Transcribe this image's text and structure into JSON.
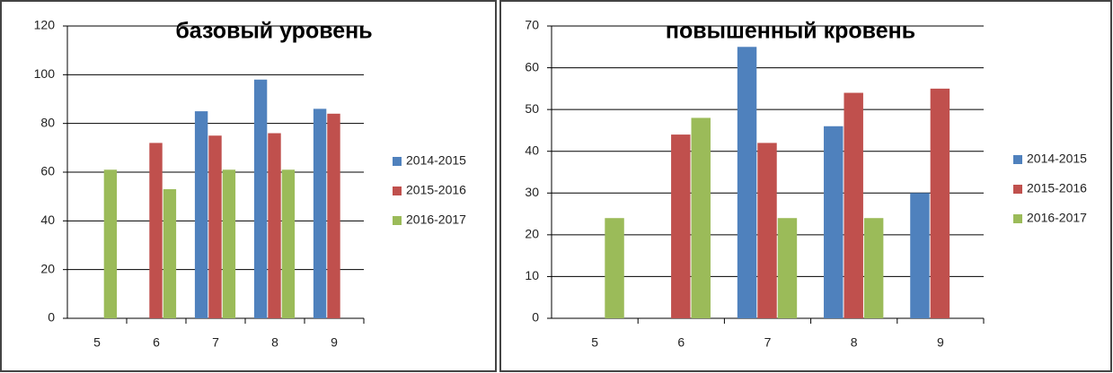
{
  "chart_data": [
    {
      "type": "bar",
      "title": "базовый уровень",
      "categories": [
        "5",
        "6",
        "7",
        "8",
        "9"
      ],
      "series": [
        {
          "name": "2014-2015",
          "color": "#4f81bd",
          "values": [
            null,
            null,
            85,
            98,
            86
          ]
        },
        {
          "name": "2015-2016",
          "color": "#c0504d",
          "values": [
            null,
            72,
            75,
            76,
            84
          ]
        },
        {
          "name": "2016-2017",
          "color": "#9bbb59",
          "values": [
            61,
            53,
            61,
            61,
            null
          ]
        }
      ],
      "ylim": [
        0,
        120
      ],
      "yticks": [
        0,
        20,
        40,
        60,
        80,
        100,
        120
      ],
      "grid": true,
      "legend": "right"
    },
    {
      "type": "bar",
      "title": "повышенный кровень",
      "categories": [
        "5",
        "6",
        "7",
        "8",
        "9"
      ],
      "series": [
        {
          "name": "2014-2015",
          "color": "#4f81bd",
          "values": [
            null,
            null,
            65,
            46,
            30
          ]
        },
        {
          "name": "2015-2016",
          "color": "#c0504d",
          "values": [
            null,
            44,
            42,
            54,
            55
          ]
        },
        {
          "name": "2016-2017",
          "color": "#9bbb59",
          "values": [
            24,
            48,
            24,
            24,
            null
          ]
        }
      ],
      "ylim": [
        0,
        70
      ],
      "yticks": [
        0,
        10,
        20,
        30,
        40,
        50,
        60,
        70
      ],
      "grid": true,
      "legend": "right"
    }
  ]
}
